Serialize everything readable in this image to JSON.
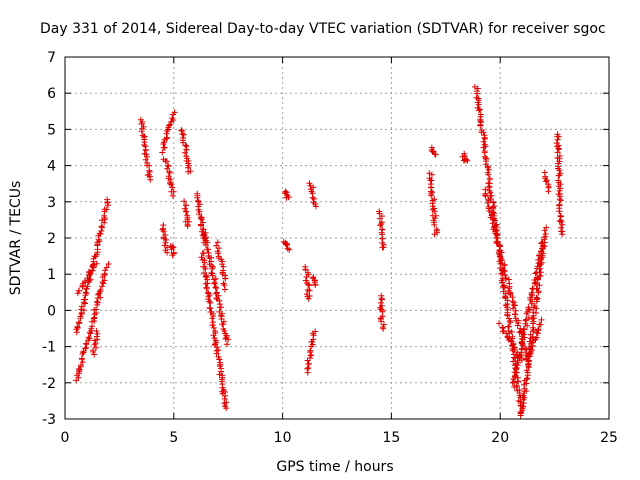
{
  "chart_data": {
    "type": "scatter",
    "title": "Day 331 of 2014, Sidereal Day-to-day VTEC variation (SDTVAR) for receiver sgoc",
    "xlabel": "GPS time / hours",
    "ylabel": "SDTVAR / TECUs",
    "xlim": [
      0,
      25
    ],
    "ylim": [
      -3,
      7
    ],
    "xticks": [
      0,
      5,
      10,
      15,
      20,
      25
    ],
    "yticks": [
      -3,
      -2,
      -1,
      0,
      1,
      2,
      3,
      4,
      5,
      6,
      7
    ],
    "grid": true,
    "marker": "plus",
    "color": "#e00000",
    "segments": [
      {
        "x": [
          0.55,
          2.0
        ],
        "y": [
          -0.6,
          3.05
        ]
      },
      {
        "x": [
          0.55,
          1.95
        ],
        "y": [
          -1.95,
          1.25
        ]
      },
      {
        "x": [
          0.6,
          1.4
        ],
        "y": [
          0.45,
          1.3
        ]
      },
      {
        "x": [
          1.3,
          1.5
        ],
        "y": [
          -1.2,
          -0.6
        ]
      },
      {
        "x": [
          3.5,
          3.9
        ],
        "y": [
          5.3,
          3.6
        ]
      },
      {
        "x": [
          4.5,
          5.0
        ],
        "y": [
          4.4,
          5.45
        ]
      },
      {
        "x": [
          4.5,
          4.7
        ],
        "y": [
          2.35,
          1.6
        ]
      },
      {
        "x": [
          4.6,
          5.0
        ],
        "y": [
          4.2,
          3.2
        ]
      },
      {
        "x": [
          4.9,
          5.0
        ],
        "y": [
          1.8,
          1.5
        ]
      },
      {
        "x": [
          5.4,
          5.7
        ],
        "y": [
          5.0,
          3.8
        ]
      },
      {
        "x": [
          5.5,
          5.65
        ],
        "y": [
          3.0,
          2.3
        ]
      },
      {
        "x": [
          6.1,
          6.4
        ],
        "y": [
          3.2,
          1.9
        ]
      },
      {
        "x": [
          6.3,
          7.4
        ],
        "y": [
          1.6,
          -2.7
        ]
      },
      {
        "x": [
          6.4,
          7.45
        ],
        "y": [
          2.2,
          -0.9
        ]
      },
      {
        "x": [
          7.0,
          7.4
        ],
        "y": [
          1.85,
          0.6
        ]
      },
      {
        "x": [
          10.1,
          10.25
        ],
        "y": [
          3.3,
          3.1
        ]
      },
      {
        "x": [
          10.1,
          10.25
        ],
        "y": [
          1.9,
          1.7
        ]
      },
      {
        "x": [
          11.1,
          11.2
        ],
        "y": [
          1.2,
          0.3
        ]
      },
      {
        "x": [
          11.1,
          11.45
        ],
        "y": [
          -1.7,
          -0.6
        ]
      },
      {
        "x": [
          11.3,
          11.5
        ],
        "y": [
          3.5,
          2.9
        ]
      },
      {
        "x": [
          11.35,
          11.5
        ],
        "y": [
          0.9,
          0.7
        ]
      },
      {
        "x": [
          14.5,
          14.6
        ],
        "y": [
          2.7,
          1.7
        ]
      },
      {
        "x": [
          14.5,
          14.6
        ],
        "y": [
          0.4,
          -0.5
        ]
      },
      {
        "x": [
          16.8,
          17.05
        ],
        "y": [
          4.5,
          4.3
        ]
      },
      {
        "x": [
          16.8,
          17.05
        ],
        "y": [
          3.8,
          2.1
        ]
      },
      {
        "x": [
          18.3,
          18.45
        ],
        "y": [
          4.3,
          4.1
        ]
      },
      {
        "x": [
          18.9,
          21.0
        ],
        "y": [
          6.15,
          -2.9
        ]
      },
      {
        "x": [
          19.3,
          21.3
        ],
        "y": [
          3.3,
          -1.5
        ]
      },
      {
        "x": [
          20.0,
          21.0
        ],
        "y": [
          -0.4,
          -1.4
        ]
      },
      {
        "x": [
          20.6,
          22.1
        ],
        "y": [
          -2.1,
          2.25
        ]
      },
      {
        "x": [
          21.0,
          22.0
        ],
        "y": [
          -2.8,
          1.9
        ]
      },
      {
        "x": [
          21.3,
          21.9
        ],
        "y": [
          -1.3,
          -0.3
        ]
      },
      {
        "x": [
          22.05,
          22.2
        ],
        "y": [
          3.8,
          3.3
        ]
      },
      {
        "x": [
          22.65,
          22.8
        ],
        "y": [
          4.9,
          2.1
        ]
      }
    ]
  }
}
